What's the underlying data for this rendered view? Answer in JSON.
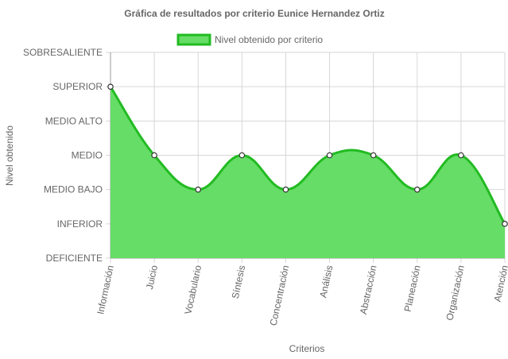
{
  "chart_data": {
    "type": "area",
    "title": "Gráfica de resultados por criterio Eunice Hernandez Ortiz",
    "xlabel": "Criterios",
    "ylabel": "Nivel obtenido",
    "categories": [
      "Información",
      "Juicio",
      "Vocabulario",
      "Síntesis",
      "Concentración",
      "Análisis",
      "Abstracción",
      "Planeación",
      "Organización",
      "Atención"
    ],
    "y_levels": [
      "DEFICIENTE",
      "INFERIOR",
      "MEDIO BAJO",
      "MEDIO",
      "MEDIO ALTO",
      "SUPERIOR",
      "SOBRESALIENTE"
    ],
    "ylim": [
      0,
      6
    ],
    "grid": true,
    "legend": "top-center",
    "series": [
      {
        "name": "Nivel obtenido por criterio",
        "values": [
          5,
          3,
          2,
          3,
          2,
          3,
          3,
          2,
          3,
          1
        ],
        "value_labels": [
          "SUPERIOR",
          "MEDIO",
          "MEDIO BAJO",
          "MEDIO",
          "MEDIO BAJO",
          "MEDIO",
          "MEDIO",
          "MEDIO BAJO",
          "MEDIO",
          "INFERIOR"
        ],
        "fill_color": "#66dd66",
        "line_color": "#22bb22"
      }
    ]
  }
}
